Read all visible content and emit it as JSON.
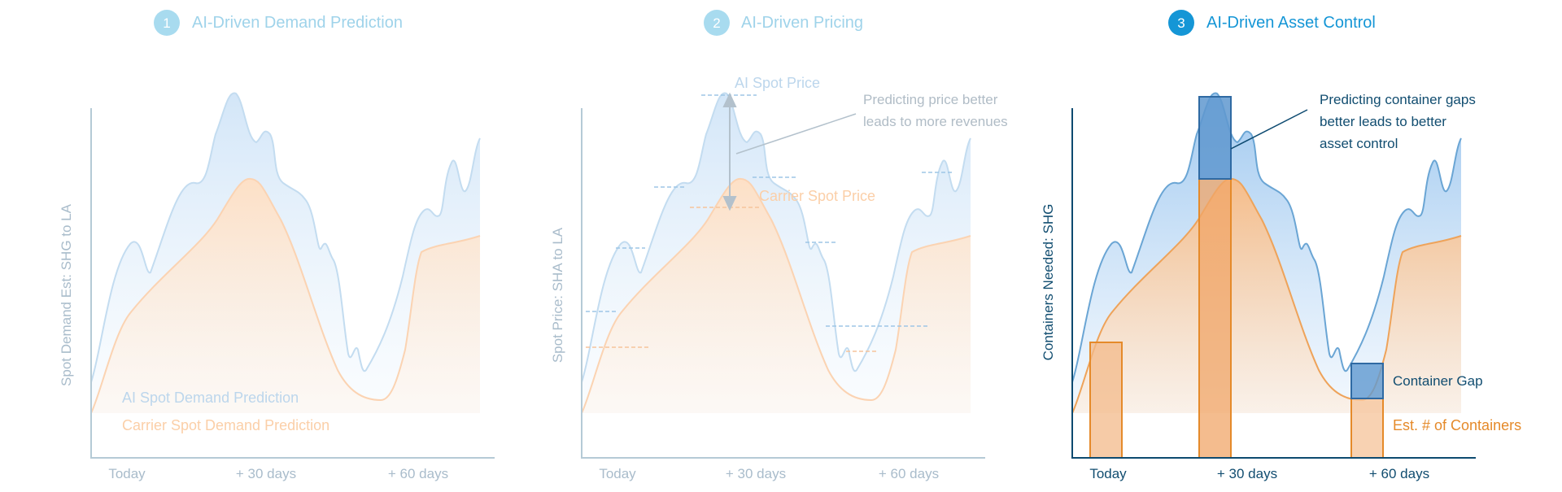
{
  "colors": {
    "faded_blue": "#bcd6ec",
    "faded_orange": "#fbd3b2",
    "faded_axis": "#b5cad6",
    "faded_text": "#a9bccb",
    "title_faded": "#9fd3ea",
    "title_active": "#1596d6",
    "blue": "#2f7fc1",
    "blue_line": "#6aa5d4",
    "orange": "#e58a2a",
    "dark_axis": "#0d4a70",
    "dark_text": "#114d70"
  },
  "panels": [
    {
      "number": "1",
      "title": "AI-Driven Demand Prediction",
      "y_label": "Spot Demand Est: SHG to LA",
      "x_ticks": [
        "Today",
        "+ 30 days",
        "+ 60 days"
      ],
      "legend": {
        "blue": "AI Spot Demand Prediction",
        "orange": "Carrier Spot Demand Prediction"
      }
    },
    {
      "number": "2",
      "title": "AI-Driven Pricing",
      "y_label": "Spot Price: SHA to LA",
      "x_ticks": [
        "Today",
        "+ 30 days",
        "+ 60 days"
      ],
      "annotations": {
        "ai_price": "AI Spot Price",
        "carrier_price": "Carrier Spot Price",
        "note_line1": "Predicting price better",
        "note_line2": "leads to more revenues"
      }
    },
    {
      "number": "3",
      "title": "AI-Driven Asset Control",
      "y_label": "Containers Needed: SHG",
      "x_ticks": [
        "Today",
        "+ 30 days",
        "+ 60 days"
      ],
      "annotations": {
        "note_line1": "Predicting container gaps",
        "note_line2": "better leads to better",
        "note_line3": "asset control",
        "gap_label": "Container Gap",
        "containers_label": "Est. # of Containers"
      }
    }
  ]
}
